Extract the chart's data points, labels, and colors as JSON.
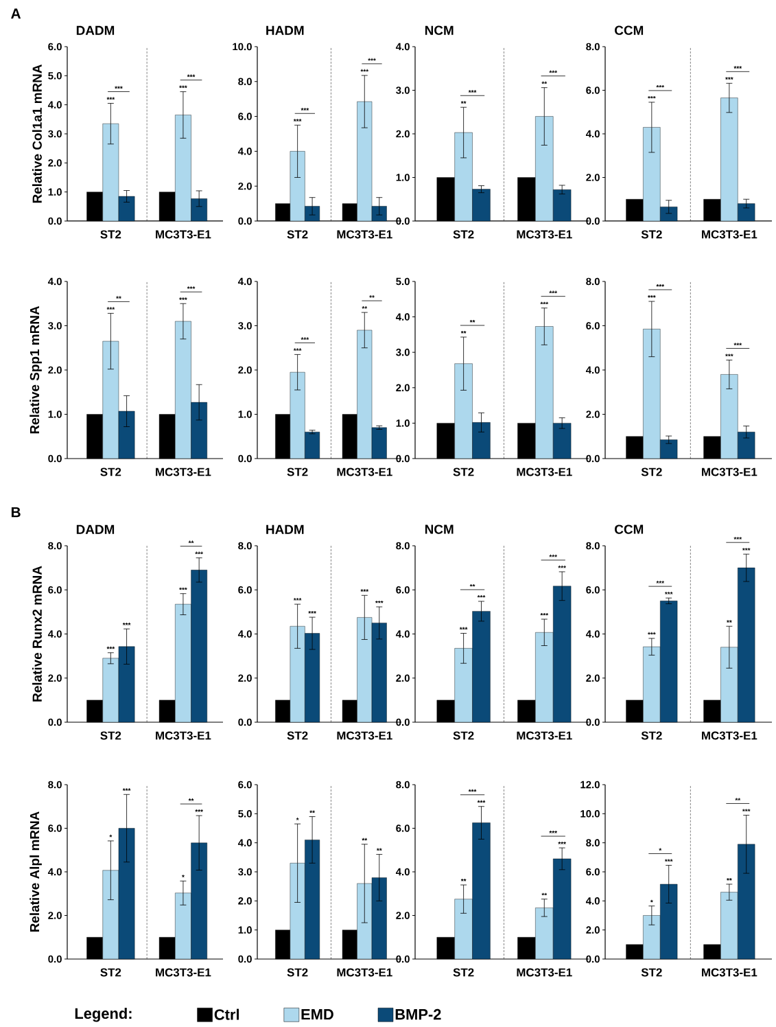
{
  "chart_data": [
    {
      "type": "bar",
      "title": "DADM",
      "ylabel": "Relative Col1a1 mRNA",
      "categories": [
        "ST2",
        "MC3T3-E1"
      ],
      "ylim": [
        0,
        6
      ],
      "yticks": [
        {
          "value": 0,
          "label": "0.0"
        },
        {
          "value": 1,
          "label": "1.0"
        },
        {
          "value": 2,
          "label": "2.0"
        },
        {
          "value": 3,
          "label": "3.0"
        },
        {
          "value": 4,
          "label": "4.0"
        },
        {
          "value": 5,
          "label": "5.0"
        },
        {
          "value": 6,
          "label": "6.0"
        }
      ],
      "annotations": [
        "A",
        "***",
        null,
        "***",
        "***",
        null,
        "***"
      ],
      "series": [
        {
          "color": "#000000",
          "values": [
            1,
            1
          ]
        },
        {
          "color": "#add8ed",
          "values": [
            3.35,
            3.65
          ],
          "errors": [
            0.7,
            0.8
          ]
        },
        {
          "color": "#0b4a78",
          "values": [
            0.85,
            0.77
          ],
          "errors": [
            0.2,
            0.27
          ]
        }
      ]
    },
    {
      "type": "bar",
      "title": "HADM",
      "categories": [
        "ST2",
        "MC3T3-E1"
      ],
      "ylim": [
        0,
        10
      ],
      "yticks": [
        {
          "value": 0,
          "label": "0.0"
        },
        {
          "value": 2,
          "label": "2.0"
        },
        {
          "value": 4,
          "label": "4.0"
        },
        {
          "value": 6,
          "label": "6.0"
        },
        {
          "value": 8,
          "label": "8.0"
        },
        {
          "value": 10,
          "label": "10.0"
        }
      ],
      "annotations": [
        "***",
        null,
        "***",
        "***",
        null,
        "***"
      ],
      "series": [
        {
          "color": "#000000",
          "values": [
            1,
            1
          ]
        },
        {
          "color": "#add8ed",
          "values": [
            4.0,
            6.85
          ],
          "errors": [
            1.5,
            1.5
          ]
        },
        {
          "color": "#0b4a78",
          "values": [
            0.85,
            0.85
          ],
          "errors": [
            0.5,
            0.5
          ]
        }
      ]
    },
    {
      "type": "bar",
      "title": "NCM",
      "categories": [
        "ST2",
        "MC3T3-E1"
      ],
      "ylim": [
        0,
        4
      ],
      "yticks": [
        {
          "value": 0,
          "label": "0.0"
        },
        {
          "value": 1,
          "label": "1.0"
        },
        {
          "value": 2,
          "label": "2.0"
        },
        {
          "value": 3,
          "label": "3.0"
        },
        {
          "value": 4,
          "label": "4.0"
        }
      ],
      "annotations": [
        "**",
        null,
        "***",
        "**",
        null,
        "***"
      ],
      "series": [
        {
          "color": "#000000",
          "values": [
            1,
            1
          ]
        },
        {
          "color": "#add8ed",
          "values": [
            2.03,
            2.4
          ],
          "errors": [
            0.58,
            0.66
          ]
        },
        {
          "color": "#0b4a78",
          "values": [
            0.73,
            0.72
          ],
          "errors": [
            0.08,
            0.1
          ]
        }
      ]
    },
    {
      "type": "bar",
      "title": "CCM",
      "categories": [
        "ST2",
        "MC3T3-E1"
      ],
      "ylim": [
        0,
        8
      ],
      "yticks": [
        {
          "value": 0,
          "label": "0.0"
        },
        {
          "value": 2,
          "label": "2.0"
        },
        {
          "value": 4,
          "label": "4.0"
        },
        {
          "value": 6,
          "label": "6.0"
        },
        {
          "value": 8,
          "label": "8.0"
        }
      ],
      "annotations": [
        "***",
        null,
        "***",
        "***",
        null,
        "***"
      ],
      "series": [
        {
          "color": "#000000",
          "values": [
            1,
            1
          ]
        },
        {
          "color": "#add8ed",
          "values": [
            4.3,
            5.65
          ],
          "errors": [
            1.15,
            0.67
          ]
        },
        {
          "color": "#0b4a78",
          "values": [
            0.65,
            0.8
          ],
          "errors": [
            0.3,
            0.2
          ]
        }
      ]
    },
    {
      "type": "bar",
      "ylabel": "Relative Spp1 mRNA",
      "categories": [
        "ST2",
        "MC3T3-E1"
      ],
      "ylim": [
        0,
        4
      ],
      "yticks": [
        {
          "value": 0,
          "label": "0.0"
        },
        {
          "value": 1,
          "label": "1.0"
        },
        {
          "value": 2,
          "label": "2.0"
        },
        {
          "value": 3,
          "label": "3.0"
        },
        {
          "value": 4,
          "label": "4.0"
        }
      ],
      "annotations": [
        "***",
        null,
        "**",
        "***",
        null,
        "***"
      ],
      "series": [
        {
          "color": "#000000",
          "values": [
            1,
            1
          ]
        },
        {
          "color": "#add8ed",
          "values": [
            2.65,
            3.1
          ],
          "errors": [
            0.63,
            0.4
          ]
        },
        {
          "color": "#0b4a78",
          "values": [
            1.07,
            1.27
          ],
          "errors": [
            0.35,
            0.4
          ]
        }
      ]
    },
    {
      "type": "bar",
      "categories": [
        "ST2",
        "MC3T3-E1"
      ],
      "ylim": [
        0,
        4
      ],
      "yticks": [
        {
          "value": 0,
          "label": "0.0"
        },
        {
          "value": 1,
          "label": "1.0"
        },
        {
          "value": 2,
          "label": "2.0"
        },
        {
          "value": 3,
          "label": "3.0"
        },
        {
          "value": 4,
          "label": "4.0"
        }
      ],
      "annotations": [
        "***",
        null,
        "***",
        "**",
        null,
        "**"
      ],
      "series": [
        {
          "color": "#000000",
          "values": [
            1,
            1
          ]
        },
        {
          "color": "#add8ed",
          "values": [
            1.95,
            2.9
          ],
          "errors": [
            0.4,
            0.4
          ]
        },
        {
          "color": "#0b4a78",
          "values": [
            0.6,
            0.7
          ],
          "errors": [
            0.04,
            0.04
          ]
        }
      ]
    },
    {
      "type": "bar",
      "categories": [
        "ST2",
        "MC3T3-E1"
      ],
      "ylim": [
        0,
        5
      ],
      "yticks": [
        {
          "value": 0,
          "label": "0.0"
        },
        {
          "value": 1,
          "label": "1.0"
        },
        {
          "value": 2,
          "label": "2.0"
        },
        {
          "value": 3,
          "label": "3.0"
        },
        {
          "value": 4,
          "label": "4.0"
        },
        {
          "value": 5,
          "label": "5.0"
        }
      ],
      "annotations": [
        "**",
        null,
        "**",
        "***",
        null,
        "***"
      ],
      "series": [
        {
          "color": "#000000",
          "values": [
            1,
            1
          ]
        },
        {
          "color": "#add8ed",
          "values": [
            2.68,
            3.73
          ],
          "errors": [
            0.75,
            0.52
          ]
        },
        {
          "color": "#0b4a78",
          "values": [
            1.02,
            1.0
          ],
          "errors": [
            0.27,
            0.15
          ]
        }
      ]
    },
    {
      "type": "bar",
      "categories": [
        "ST2",
        "MC3T3-E1"
      ],
      "ylim": [
        0,
        8
      ],
      "yticks": [
        {
          "value": 0,
          "label": "0.0"
        },
        {
          "value": 2,
          "label": "2.0"
        },
        {
          "value": 4,
          "label": "4.0"
        },
        {
          "value": 6,
          "label": "6.0"
        },
        {
          "value": 8,
          "label": "8.0"
        }
      ],
      "annotations": [
        "***",
        null,
        "***",
        "***",
        null,
        "***"
      ],
      "series": [
        {
          "color": "#000000",
          "values": [
            1,
            1
          ]
        },
        {
          "color": "#add8ed",
          "values": [
            5.85,
            3.8
          ],
          "errors": [
            1.25,
            0.65
          ]
        },
        {
          "color": "#0b4a78",
          "values": [
            0.85,
            1.2
          ],
          "errors": [
            0.17,
            0.27
          ]
        }
      ]
    },
    {
      "type": "bar",
      "title": "DADM",
      "ylabel": "Relative Runx2 mRNA",
      "categories": [
        "ST2",
        "MC3T3-E1"
      ],
      "ylim": [
        0,
        8
      ],
      "yticks": [
        {
          "value": 0,
          "label": "0.0"
        },
        {
          "value": 2,
          "label": "2.0"
        },
        {
          "value": 4,
          "label": "4.0"
        },
        {
          "value": 6,
          "label": "6.0"
        },
        {
          "value": 8,
          "label": "8.0"
        }
      ],
      "annotations": [
        "B",
        "***",
        "***",
        null,
        "***",
        "***",
        "**"
      ],
      "series": [
        {
          "color": "#000000",
          "values": [
            1,
            1
          ]
        },
        {
          "color": "#add8ed",
          "values": [
            2.9,
            5.35
          ],
          "errors": [
            0.25,
            0.48
          ]
        },
        {
          "color": "#0b4a78",
          "values": [
            3.43,
            6.9
          ],
          "errors": [
            0.8,
            0.55
          ]
        }
      ]
    },
    {
      "type": "bar",
      "title": "HADM",
      "categories": [
        "ST2",
        "MC3T3-E1"
      ],
      "ylim": [
        0,
        8
      ],
      "yticks": [
        {
          "value": 0,
          "label": "0.0"
        },
        {
          "value": 2,
          "label": "2.0"
        },
        {
          "value": 4,
          "label": "4.0"
        },
        {
          "value": 6,
          "label": "6.0"
        },
        {
          "value": 8,
          "label": "8.0"
        }
      ],
      "annotations": [
        "***",
        "***",
        null,
        "***",
        "***",
        null
      ],
      "series": [
        {
          "color": "#000000",
          "values": [
            1,
            1
          ]
        },
        {
          "color": "#add8ed",
          "values": [
            4.35,
            4.75
          ],
          "errors": [
            1.0,
            1.0
          ]
        },
        {
          "color": "#0b4a78",
          "values": [
            4.03,
            4.5
          ],
          "errors": [
            0.73,
            0.73
          ]
        }
      ]
    },
    {
      "type": "bar",
      "title": "NCM",
      "categories": [
        "ST2",
        "MC3T3-E1"
      ],
      "ylim": [
        0,
        8
      ],
      "yticks": [
        {
          "value": 0,
          "label": "0.0"
        },
        {
          "value": 2,
          "label": "2.0"
        },
        {
          "value": 4,
          "label": "4.0"
        },
        {
          "value": 6,
          "label": "6.0"
        },
        {
          "value": 8,
          "label": "8.0"
        }
      ],
      "annotations": [
        "***",
        "***",
        "**",
        "***",
        "***",
        "***"
      ],
      "series": [
        {
          "color": "#000000",
          "values": [
            1,
            1
          ]
        },
        {
          "color": "#add8ed",
          "values": [
            3.35,
            4.07
          ],
          "errors": [
            0.68,
            0.6
          ]
        },
        {
          "color": "#0b4a78",
          "values": [
            5.03,
            6.17
          ],
          "errors": [
            0.45,
            0.65
          ]
        }
      ]
    },
    {
      "type": "bar",
      "title": "CCM",
      "categories": [
        "ST2",
        "MC3T3-E1"
      ],
      "ylim": [
        0,
        8
      ],
      "yticks": [
        {
          "value": 0,
          "label": "0.0"
        },
        {
          "value": 2,
          "label": "2.0"
        },
        {
          "value": 4,
          "label": "4.0"
        },
        {
          "value": 6,
          "label": "6.0"
        },
        {
          "value": 8,
          "label": "8.0"
        }
      ],
      "annotations": [
        "***",
        "***",
        "***",
        "**",
        "***",
        "***"
      ],
      "series": [
        {
          "color": "#000000",
          "values": [
            1,
            1
          ]
        },
        {
          "color": "#add8ed",
          "values": [
            3.42,
            3.4
          ],
          "errors": [
            0.38,
            0.95
          ]
        },
        {
          "color": "#0b4a78",
          "values": [
            5.5,
            7.0
          ],
          "errors": [
            0.13,
            0.62
          ]
        }
      ]
    },
    {
      "type": "bar",
      "ylabel": "Relative Alpl mRNA",
      "categories": [
        "ST2",
        "MC3T3-E1"
      ],
      "ylim": [
        0,
        8
      ],
      "yticks": [
        {
          "value": 0,
          "label": "0.0"
        },
        {
          "value": 2,
          "label": "2.0"
        },
        {
          "value": 4,
          "label": "4.0"
        },
        {
          "value": 6,
          "label": "6.0"
        },
        {
          "value": 8,
          "label": "8.0"
        }
      ],
      "legend": "bottom",
      "legend_title": "Legend:",
      "annotations": [
        "*",
        "***",
        null,
        "*",
        "***",
        "**"
      ],
      "series": [
        {
          "name": "Ctrl",
          "color": "#000000",
          "values": [
            1,
            1
          ]
        },
        {
          "name": "EMD",
          "color": "#add8ed",
          "values": [
            4.07,
            3.03
          ],
          "errors": [
            1.35,
            0.55
          ]
        },
        {
          "name": "BMP-2",
          "color": "#0b4a78",
          "values": [
            6.0,
            5.33
          ],
          "errors": [
            1.55,
            1.25
          ]
        }
      ]
    },
    {
      "type": "bar",
      "categories": [
        "ST2",
        "MC3T3-E1"
      ],
      "ylim": [
        0,
        6
      ],
      "yticks": [
        {
          "value": 0,
          "label": "0.0"
        },
        {
          "value": 1,
          "label": "1.0"
        },
        {
          "value": 2,
          "label": "2.0"
        },
        {
          "value": 3,
          "label": "3.0"
        },
        {
          "value": 4,
          "label": "4.0"
        },
        {
          "value": 5,
          "label": "5.0"
        },
        {
          "value": 6,
          "label": "6.0"
        }
      ],
      "annotations": [
        "*",
        "**",
        null,
        "**",
        "**",
        null
      ],
      "series": [
        {
          "color": "#000000",
          "values": [
            1,
            1
          ]
        },
        {
          "color": "#add8ed",
          "values": [
            3.3,
            2.6
          ],
          "errors": [
            1.35,
            1.35
          ]
        },
        {
          "color": "#0b4a78",
          "values": [
            4.1,
            2.8
          ],
          "errors": [
            0.8,
            0.8
          ]
        }
      ]
    },
    {
      "type": "bar",
      "categories": [
        "ST2",
        "MC3T3-E1"
      ],
      "ylim": [
        0,
        8
      ],
      "yticks": [
        {
          "value": 0,
          "label": "0.0"
        },
        {
          "value": 2,
          "label": "2.0"
        },
        {
          "value": 4,
          "label": "4.0"
        },
        {
          "value": 6,
          "label": "6.0"
        },
        {
          "value": 8,
          "label": "8.0"
        }
      ],
      "annotations": [
        "**",
        "***",
        "***",
        "**",
        "***",
        "***"
      ],
      "series": [
        {
          "color": "#000000",
          "values": [
            1,
            1
          ]
        },
        {
          "color": "#add8ed",
          "values": [
            2.75,
            2.35
          ],
          "errors": [
            0.65,
            0.4
          ]
        },
        {
          "color": "#0b4a78",
          "values": [
            6.25,
            4.6
          ],
          "errors": [
            0.75,
            0.5
          ]
        }
      ]
    },
    {
      "type": "bar",
      "categories": [
        "ST2",
        "MC3T3-E1"
      ],
      "ylim": [
        0,
        12
      ],
      "yticks": [
        {
          "value": 0,
          "label": "0.0"
        },
        {
          "value": 2,
          "label": "2.0"
        },
        {
          "value": 4,
          "label": "4.0"
        },
        {
          "value": 6,
          "label": "6.0"
        },
        {
          "value": 8,
          "label": "8.0"
        },
        {
          "value": 10,
          "label": "10.0"
        },
        {
          "value": 12,
          "label": "12.0"
        }
      ],
      "annotations": [
        "*",
        "***",
        "*",
        "**",
        "***",
        "**"
      ],
      "series": [
        {
          "color": "#000000",
          "values": [
            1,
            1
          ]
        },
        {
          "color": "#add8ed",
          "values": [
            3.0,
            4.6
          ],
          "errors": [
            0.65,
            0.55
          ]
        },
        {
          "color": "#0b4a78",
          "values": [
            5.15,
            7.9
          ],
          "errors": [
            1.3,
            2.0
          ]
        }
      ]
    }
  ]
}
